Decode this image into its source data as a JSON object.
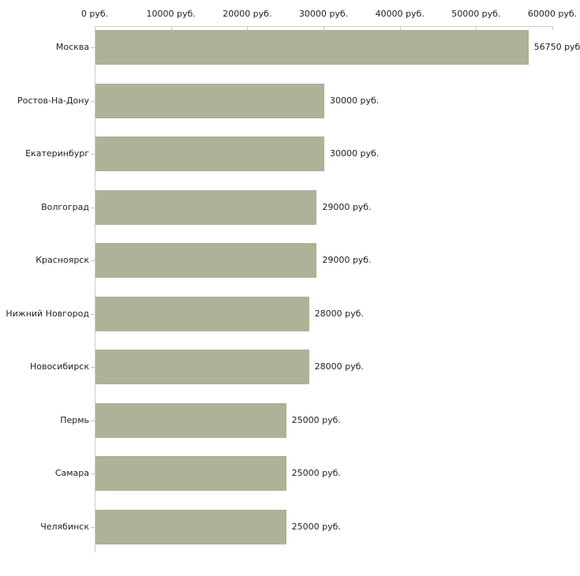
{
  "chart_data": {
    "type": "bar",
    "orientation": "horizontal",
    "title": "",
    "xlabel": "",
    "ylabel": "",
    "categories": [
      "Москва",
      "Ростов-На-Дону",
      "Екатеринбург",
      "Волгоград",
      "Красноярск",
      "Нижний Новгород",
      "Новосибирск",
      "Пермь",
      "Самара",
      "Челябинск"
    ],
    "values": [
      56750,
      30000,
      30000,
      29000,
      29000,
      28000,
      28000,
      25000,
      25000,
      25000
    ],
    "value_labels": [
      "56750 руб",
      "30000 руб.",
      "30000 руб.",
      "29000 руб.",
      "29000 руб.",
      "28000 руб.",
      "28000 руб.",
      "25000 руб.",
      "25000 руб.",
      "25000 руб."
    ],
    "x_axis": {
      "position": "top",
      "min": 0,
      "max": 60000,
      "ticks": [
        0,
        10000,
        20000,
        30000,
        40000,
        50000,
        60000
      ],
      "tick_labels": [
        "0 руб.",
        "10000 руб.",
        "20000 руб.",
        "30000 руб.",
        "40000 руб.",
        "50000 руб.",
        "60000 руб."
      ]
    },
    "grid": false,
    "legend": false,
    "colors": {
      "bar": "#adb396",
      "axis_line": "#cccccc",
      "tick_mark": "#ccca99",
      "text": "#222222",
      "background": "#ffffff"
    }
  }
}
